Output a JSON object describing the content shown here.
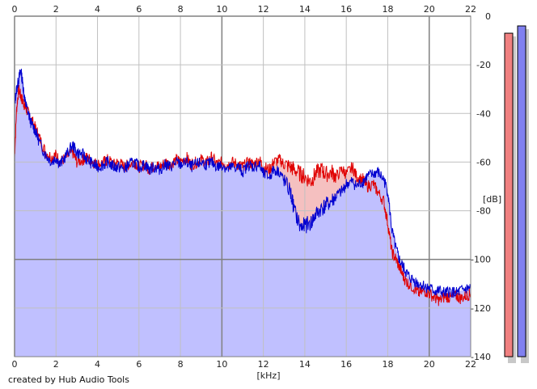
{
  "chart_data": {
    "type": "area",
    "x_unit_label": "[kHz]",
    "y_unit_label": "[dB]",
    "x_ticks": [
      "0",
      "2",
      "4",
      "6",
      "8",
      "10",
      "12",
      "14",
      "16",
      "18",
      "20",
      "22"
    ],
    "y_ticks": [
      "0",
      "-20",
      "-40",
      "-60",
      "-80",
      "-100",
      "-120",
      "-140"
    ],
    "xlim": [
      0,
      22
    ],
    "ylim": [
      -140,
      0
    ],
    "grid": true,
    "colors": {
      "red_series": "#e00000",
      "blue_series": "#0000d0",
      "fill": "#c0c0ff",
      "red_diff_fill": "#f5c0c0",
      "red_meter": "#f08080",
      "blue_meter": "#8080f0",
      "background": "#ffffff",
      "grid_minor": "#c0c0c0",
      "grid_major": "#808080"
    },
    "series": [
      {
        "color": "red",
        "x": [
          0,
          0.1,
          0.2,
          0.3,
          0.4,
          0.5,
          0.6,
          0.8,
          1.0,
          1.2,
          1.5,
          1.8,
          2.0,
          2.2,
          2.5,
          2.8,
          3.0,
          3.3,
          3.5,
          3.8,
          4.0,
          4.3,
          4.5,
          4.8,
          5.0,
          5.3,
          5.5,
          5.8,
          6.0,
          6.3,
          6.5,
          6.8,
          7.0,
          7.3,
          7.5,
          7.8,
          8.0,
          8.3,
          8.5,
          8.8,
          9.0,
          9.3,
          9.5,
          9.8,
          10.0,
          10.3,
          10.5,
          10.8,
          11.0,
          11.3,
          11.5,
          11.8,
          12.0,
          12.3,
          12.5,
          12.8,
          13.0,
          13.3,
          13.5,
          13.8,
          14.0,
          14.3,
          14.5,
          14.8,
          15.0,
          15.3,
          15.5,
          15.8,
          16.0,
          16.3,
          16.5,
          16.8,
          17.0,
          17.3,
          17.5,
          17.8,
          18.0,
          18.2,
          18.4,
          18.6,
          18.8,
          19.0,
          19.3,
          19.5,
          19.8,
          20.0,
          20.3,
          20.5,
          20.8,
          21.0,
          21.3,
          21.5,
          21.8,
          22.0
        ],
        "y": [
          -58,
          -38,
          -30,
          -33,
          -35,
          -37,
          -39,
          -42,
          -46,
          -50,
          -56,
          -58,
          -57,
          -60,
          -58,
          -56,
          -60,
          -59,
          -58,
          -60,
          -61,
          -60,
          -59,
          -61,
          -60,
          -62,
          -61,
          -60,
          -62,
          -61,
          -63,
          -61,
          -62,
          -60,
          -61,
          -59,
          -60,
          -58,
          -61,
          -60,
          -59,
          -60,
          -58,
          -61,
          -60,
          -61,
          -60,
          -61,
          -62,
          -60,
          -61,
          -59,
          -62,
          -63,
          -60,
          -59,
          -61,
          -62,
          -63,
          -65,
          -66,
          -68,
          -65,
          -63,
          -65,
          -64,
          -66,
          -63,
          -65,
          -62,
          -66,
          -67,
          -70,
          -69,
          -72,
          -76,
          -85,
          -97,
          -100,
          -104,
          -108,
          -110,
          -112,
          -114,
          -113,
          -114,
          -116,
          -117,
          -115,
          -116,
          -115,
          -116,
          -115,
          -114
        ]
      },
      {
        "color": "blue",
        "x": [
          0,
          0.1,
          0.2,
          0.3,
          0.4,
          0.5,
          0.6,
          0.8,
          1.0,
          1.2,
          1.5,
          1.8,
          2.0,
          2.2,
          2.5,
          2.8,
          3.0,
          3.3,
          3.5,
          3.8,
          4.0,
          4.3,
          4.5,
          4.8,
          5.0,
          5.3,
          5.5,
          5.8,
          6.0,
          6.3,
          6.5,
          6.8,
          7.0,
          7.3,
          7.5,
          7.8,
          8.0,
          8.3,
          8.5,
          8.8,
          9.0,
          9.3,
          9.5,
          9.8,
          10.0,
          10.3,
          10.5,
          10.8,
          11.0,
          11.3,
          11.5,
          11.8,
          12.0,
          12.3,
          12.5,
          12.8,
          13.0,
          13.3,
          13.5,
          13.8,
          14.0,
          14.3,
          14.5,
          14.8,
          15.0,
          15.3,
          15.5,
          15.8,
          16.0,
          16.3,
          16.5,
          16.8,
          17.0,
          17.3,
          17.5,
          17.8,
          18.0,
          18.2,
          18.4,
          18.6,
          18.8,
          19.0,
          19.3,
          19.5,
          19.8,
          20.0,
          20.3,
          20.5,
          20.8,
          21.0,
          21.3,
          21.5,
          21.8,
          22.0
        ],
        "y": [
          -36,
          -30,
          -26,
          -22,
          -28,
          -35,
          -38,
          -44,
          -47,
          -52,
          -57,
          -60,
          -58,
          -61,
          -57,
          -53,
          -56,
          -57,
          -59,
          -61,
          -62,
          -61,
          -60,
          -62,
          -62,
          -63,
          -61,
          -60,
          -62,
          -61,
          -63,
          -62,
          -63,
          -61,
          -62,
          -60,
          -61,
          -60,
          -62,
          -61,
          -60,
          -61,
          -60,
          -62,
          -61,
          -63,
          -62,
          -62,
          -64,
          -61,
          -62,
          -61,
          -65,
          -66,
          -63,
          -64,
          -68,
          -72,
          -80,
          -87,
          -86,
          -85,
          -82,
          -79,
          -78,
          -76,
          -74,
          -72,
          -69,
          -68,
          -70,
          -68,
          -66,
          -65,
          -64,
          -67,
          -72,
          -88,
          -96,
          -101,
          -104,
          -107,
          -109,
          -110,
          -111,
          -112,
          -113,
          -113,
          -114,
          -113,
          -114,
          -113,
          -112,
          -112
        ]
      }
    ],
    "meters": [
      {
        "color": "red",
        "value_db": -7
      },
      {
        "color": "blue",
        "value_db": -4
      }
    ]
  },
  "credit": "created by Hub Audio Tools"
}
